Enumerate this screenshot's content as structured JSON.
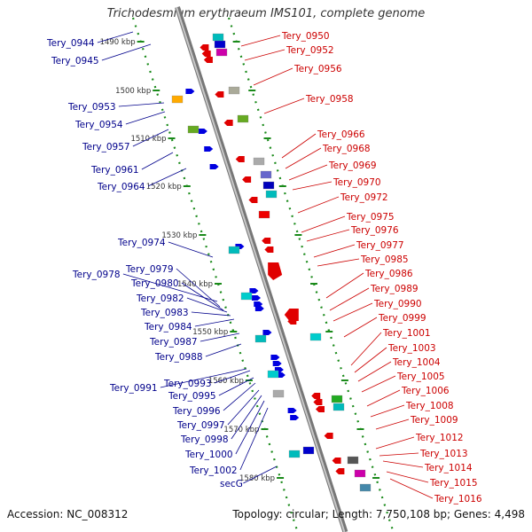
{
  "title": "Trichodesmium erythraeum IMS101, complete genome",
  "footer": {
    "accession": "Accession: NC_008312",
    "summary": "Topology: circular; Length: 7,750,108 bp; Genes: 4,498"
  },
  "scale_labels": [
    "1490 kbp",
    "1500 kbp",
    "1510 kbp",
    "1520 kbp",
    "1530 kbp",
    "1540 kbp",
    "1550 kbp",
    "1560 kbp",
    "1570 kbp",
    "1580 kbp"
  ],
  "left_labels": [
    "Tery_0944",
    "Tery_0945",
    "Tery_0953",
    "Tery_0954",
    "Tery_0957",
    "Tery_0961",
    "Tery_0964",
    "Tery_0974",
    "Tery_0978",
    "Tery_0979",
    "Tery_0980",
    "Tery_0982",
    "Tery_0983",
    "Tery_0984",
    "Tery_0987",
    "Tery_0988",
    "Tery_0991",
    "Tery_0993",
    "Tery_0995",
    "Tery_0996",
    "Tery_0997",
    "Tery_0998",
    "Tery_1000",
    "Tery_1002",
    "secG"
  ],
  "right_labels": [
    "Tery_0950",
    "Tery_0952",
    "Tery_0956",
    "Tery_0958",
    "Tery_0966",
    "Tery_0968",
    "Tery_0969",
    "Tery_0970",
    "Tery_0972",
    "Tery_0975",
    "Tery_0976",
    "Tery_0977",
    "Tery_0985",
    "Tery_0986",
    "Tery_0989",
    "Tery_0990",
    "Tery_0999",
    "Tery_1001",
    "Tery_1003",
    "Tery_1004",
    "Tery_1005",
    "Tery_1006",
    "Tery_1008",
    "Tery_1009",
    "Tery_1012",
    "Tery_1013",
    "Tery_1014",
    "Tery_1015",
    "Tery_1016"
  ],
  "colors": {
    "forward_gene": "#e00000",
    "reverse_gene": "#0000e0",
    "left_label": "#00008b",
    "right_label": "#cc0000",
    "backbone": "#999999",
    "tick": "#1a8a1a"
  }
}
